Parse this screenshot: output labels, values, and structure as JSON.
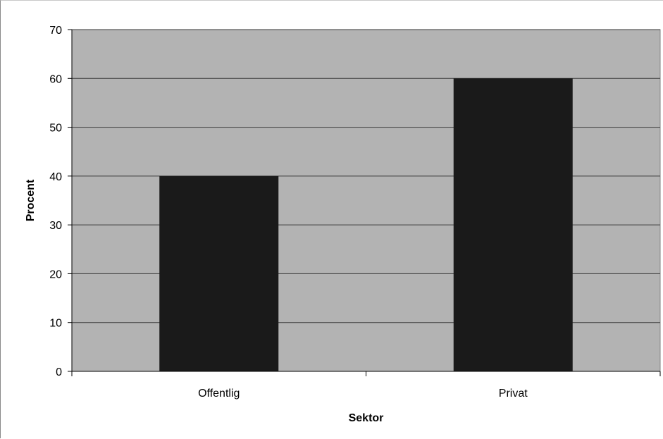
{
  "chart_data": {
    "type": "bar",
    "categories": [
      "Offentlig",
      "Privat"
    ],
    "values": [
      40,
      60
    ],
    "xlabel": "Sektor",
    "ylabel": "Procent",
    "ylim": [
      0,
      70
    ],
    "yticks": [
      0,
      10,
      20,
      30,
      40,
      50,
      60,
      70
    ],
    "grid": true,
    "legend": "none",
    "colors": {
      "bar": "#1a1a1a",
      "plot_background": "#b3b3b3",
      "gridline": "#3a3a3a"
    }
  }
}
